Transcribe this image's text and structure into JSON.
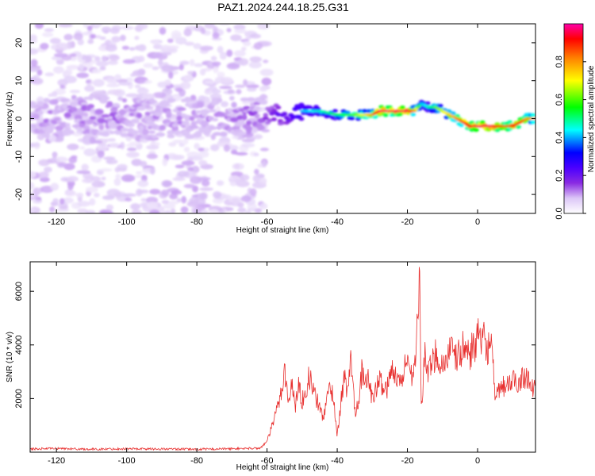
{
  "figure": {
    "title": "PAZ1.2024.244.18.25.G31"
  },
  "chart_data": [
    {
      "type": "heatmap",
      "xlabel": "Height of straight line (km)",
      "ylabel": "Frequency (Hz)",
      "xlim": [
        -127.5,
        16.5
      ],
      "ylim": [
        -25,
        25
      ],
      "xticks": [
        -120,
        -100,
        -80,
        -60,
        -40,
        -20,
        0
      ],
      "yticks": [
        -20,
        -10,
        0,
        10,
        20
      ],
      "colorbar": {
        "label": "Normalized spectral amplitude",
        "range": [
          0,
          1
        ],
        "ticks": [
          "0.0",
          "0.2",
          "0.4",
          "0.6",
          "0.8"
        ],
        "colormap": [
          "#ffffff",
          "#dcc6f7",
          "#8a2be2",
          "#4b00ff",
          "#0000ff",
          "#00ffff",
          "#00ff00",
          "#ffff00",
          "#ff8000",
          "#ff0000",
          "#ff00aa"
        ]
      },
      "ridge": {
        "x": [
          -127,
          -110,
          -90,
          -75,
          -62,
          -55,
          -50,
          -45,
          -40,
          -35,
          -30,
          -28,
          -24,
          -20,
          -18,
          -16,
          -14,
          -12,
          -10,
          -8,
          -6,
          -4,
          -2,
          0,
          2,
          4,
          6,
          8,
          10,
          12,
          14,
          16
        ],
        "frequency": [
          0,
          1,
          0,
          0,
          1,
          1,
          2,
          2,
          1,
          1,
          1,
          2,
          2,
          2,
          2,
          4,
          3,
          3,
          2,
          1,
          0,
          -1,
          -2,
          -2,
          -2,
          -2,
          -2,
          -2,
          -2,
          -1,
          0,
          0
        ],
        "amplitude": [
          0.15,
          0.18,
          0.16,
          0.15,
          0.2,
          0.3,
          0.45,
          0.5,
          0.55,
          0.6,
          0.75,
          0.9,
          0.9,
          0.9,
          0.75,
          0.45,
          0.5,
          0.6,
          0.65,
          0.7,
          0.75,
          0.8,
          0.85,
          0.9,
          0.9,
          0.9,
          0.85,
          0.8,
          0.85,
          0.8,
          0.75,
          0.75
        ]
      }
    },
    {
      "type": "line",
      "xlabel": "Height of straight line (km)",
      "ylabel": "SNR (10 * v/v)",
      "xlim": [
        -127.5,
        16.5
      ],
      "ylim": [
        0,
        7100
      ],
      "xticks": [
        -120,
        -100,
        -80,
        -60,
        -40,
        -20,
        0
      ],
      "yticks": [
        2000,
        4000,
        6000
      ],
      "color": "#e8302f",
      "series": [
        {
          "x": [
            -127,
            -120,
            -110,
            -100,
            -90,
            -80,
            -70,
            -62,
            -60,
            -58,
            -56,
            -55,
            -54,
            -53,
            -52,
            -51,
            -50,
            -48,
            -46,
            -44,
            -42,
            -41,
            -40,
            -39,
            -38,
            -37,
            -36,
            -35,
            -34,
            -33,
            -32,
            -31,
            -30,
            -28,
            -26,
            -24,
            -22,
            -20,
            -19,
            -18,
            -17,
            -16.5,
            -16,
            -15,
            -14,
            -12,
            -10,
            -8,
            -6,
            -4,
            -2,
            0,
            1,
            2,
            3,
            4,
            5,
            6,
            8,
            10,
            12,
            14,
            16
          ],
          "y": [
            120,
            140,
            110,
            130,
            120,
            110,
            130,
            150,
            400,
            1200,
            2200,
            3200,
            1800,
            2600,
            1700,
            2500,
            1900,
            2800,
            2000,
            1300,
            2500,
            2000,
            600,
            1800,
            2800,
            2200,
            3600,
            1500,
            1900,
            3000,
            2400,
            2900,
            1900,
            2700,
            2300,
            3200,
            2500,
            3600,
            2800,
            3500,
            4700,
            7100,
            1400,
            3800,
            2900,
            3700,
            3200,
            3800,
            3500,
            3900,
            3700,
            4300,
            4000,
            4200,
            3900,
            4100,
            1800,
            2300,
            2500,
            2600,
            2700,
            2900,
            2300
          ]
        }
      ]
    }
  ]
}
